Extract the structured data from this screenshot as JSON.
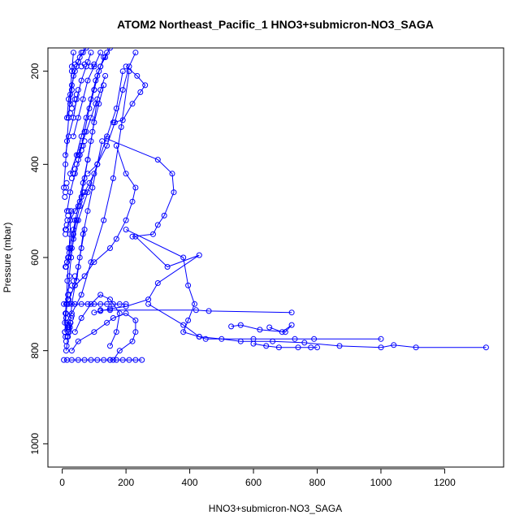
{
  "chart_data": {
    "type": "scatter",
    "title": "ATOM2 Northeast_Pacific_1 HNO3+submicron-NO3_SAGA",
    "xlabel": "HNO3+submicron-NO3_SAGA",
    "ylabel": "Pressure (mbar)",
    "xlim": [
      -45,
      1385
    ],
    "ylim": [
      1050,
      150
    ],
    "y_reversed": true,
    "x_ticks": [
      0,
      200,
      400,
      600,
      800,
      1000,
      1200
    ],
    "y_ticks": [
      200,
      400,
      600,
      800,
      1000
    ],
    "grid": false,
    "legend": "none",
    "color": "#0000ff",
    "series": [
      {
        "x": [
          140,
          300,
          345,
          350,
          320,
          300,
          285,
          220
        ],
        "y": [
          345,
          390,
          420,
          460,
          510,
          530,
          550,
          555
        ]
      },
      {
        "x": [
          230,
          330,
          430,
          300,
          270,
          200,
          150,
          120,
          100
        ],
        "y": [
          555,
          620,
          595,
          655,
          690,
          705,
          710,
          715,
          718
        ]
      },
      {
        "x": [
          200,
          380,
          395,
          415,
          395,
          380,
          430,
          450,
          600,
          730,
          790,
          1000
        ],
        "y": [
          540,
          600,
          660,
          700,
          735,
          760,
          770,
          775,
          775,
          775,
          775,
          775
        ]
      },
      {
        "x": [
          270,
          380,
          430,
          500,
          560,
          660,
          760,
          870,
          1000,
          1040,
          1110,
          1330
        ],
        "y": [
          700,
          745,
          770,
          775,
          780,
          780,
          783,
          790,
          793,
          788,
          793,
          793
        ]
      },
      {
        "x": [
          120,
          150,
          420,
          460,
          720
        ],
        "y": [
          713,
          713,
          713,
          715,
          718
        ]
      },
      {
        "x": [
          650,
          690,
          720,
          700,
          620,
          560,
          530
        ],
        "y": [
          750,
          760,
          745,
          760,
          755,
          745,
          748
        ]
      },
      {
        "x": [
          600,
          640,
          680,
          740,
          780,
          800
        ],
        "y": [
          785,
          790,
          793,
          793,
          793,
          793
        ]
      },
      {
        "x": [
          160,
          190,
          220,
          245,
          260,
          235,
          200
        ],
        "y": [
          310,
          305,
          270,
          245,
          230,
          210,
          190
        ]
      },
      {
        "x": [
          80,
          110,
          140,
          165,
          190,
          210,
          230
        ],
        "y": [
          420,
          400,
          360,
          310,
          240,
          190,
          160
        ]
      },
      {
        "x": [
          30,
          60,
          90,
          130,
          160,
          185,
          210
        ],
        "y": [
          720,
          680,
          610,
          520,
          430,
          320,
          200
        ]
      },
      {
        "x": [
          20,
          40,
          70,
          100,
          150,
          170,
          200,
          220,
          230,
          200,
          170
        ],
        "y": [
          690,
          660,
          640,
          610,
          580,
          560,
          520,
          480,
          450,
          420,
          360
        ]
      },
      {
        "x": [
          10,
          30,
          50,
          80,
          110,
          140,
          170,
          190
        ],
        "y": [
          620,
          580,
          520,
          460,
          400,
          340,
          280,
          200
        ]
      },
      {
        "x": [
          40,
          60,
          90,
          120,
          150,
          180,
          170,
          150
        ],
        "y": [
          760,
          730,
          700,
          680,
          690,
          720,
          760,
          790
        ]
      },
      {
        "x": [
          30,
          50,
          100,
          140,
          160,
          200,
          230,
          230,
          220,
          180,
          160,
          150
        ],
        "y": [
          800,
          780,
          760,
          740,
          730,
          720,
          735,
          760,
          780,
          800,
          820,
          820
        ]
      },
      {
        "x": [
          15,
          25,
          40,
          55,
          70,
          85,
          100,
          115,
          130
        ],
        "y": [
          500,
          460,
          420,
          380,
          330,
          280,
          240,
          200,
          170
        ]
      },
      {
        "x": [
          20,
          35,
          50,
          65,
          80,
          95,
          110
        ],
        "y": [
          580,
          540,
          490,
          440,
          390,
          330,
          260
        ]
      },
      {
        "x": [
          25,
          45,
          60,
          75,
          90,
          105,
          120,
          140
        ],
        "y": [
          420,
          380,
          340,
          300,
          260,
          220,
          190,
          160
        ]
      },
      {
        "x": [
          10,
          20,
          35,
          45,
          60,
          75,
          90
        ],
        "y": [
          380,
          340,
          300,
          260,
          220,
          190,
          160
        ]
      },
      {
        "x": [
          15,
          20,
          30,
          40,
          50,
          60
        ],
        "y": [
          300,
          260,
          230,
          200,
          180,
          160
        ]
      },
      {
        "x": [
          5,
          10,
          15,
          20,
          25,
          30,
          35
        ],
        "y": [
          450,
          400,
          350,
          300,
          250,
          200,
          160
        ]
      },
      {
        "x": [
          8,
          12,
          18,
          22,
          28,
          35,
          40
        ],
        "y": [
          760,
          720,
          680,
          640,
          600,
          560,
          520
        ]
      },
      {
        "x": [
          12,
          18,
          25,
          30,
          40,
          50,
          60,
          70
        ],
        "y": [
          800,
          770,
          740,
          700,
          660,
          620,
          580,
          540
        ]
      },
      {
        "x": [
          5,
          15,
          30,
          50,
          70,
          90,
          110,
          130,
          150,
          170,
          190,
          210,
          230,
          250
        ],
        "y": [
          820,
          820,
          820,
          820,
          820,
          820,
          820,
          820,
          820,
          820,
          820,
          820,
          820,
          820
        ]
      },
      {
        "x": [
          5,
          20,
          40,
          60,
          80,
          100,
          120,
          140,
          160,
          180,
          200
        ],
        "y": [
          700,
          700,
          700,
          700,
          700,
          700,
          700,
          700,
          700,
          700,
          700
        ]
      },
      {
        "x": [
          10,
          25,
          40,
          55,
          70,
          85,
          100
        ],
        "y": [
          540,
          520,
          500,
          480,
          460,
          440,
          420
        ]
      },
      {
        "x": [
          45,
          55,
          65,
          80,
          95,
          110,
          125
        ],
        "y": [
          650,
          600,
          550,
          500,
          450,
          400,
          350
        ]
      },
      {
        "x": [
          60,
          70,
          80,
          90,
          100,
          115,
          130
        ],
        "y": [
          470,
          430,
          390,
          350,
          310,
          270,
          230
        ]
      },
      {
        "x": [
          35,
          50,
          65,
          80,
          100,
          120
        ],
        "y": [
          340,
          300,
          260,
          220,
          190,
          160
        ]
      },
      {
        "x": [
          25,
          30,
          35,
          45,
          55,
          65,
          75
        ],
        "y": [
          270,
          240,
          210,
          190,
          170,
          160,
          150
        ]
      },
      {
        "x": [
          8,
          12,
          16,
          20,
          24,
          28
        ],
        "y": [
          740,
          700,
          650,
          600,
          550,
          500
        ]
      },
      {
        "x": [
          15,
          25,
          35,
          45,
          55,
          65
        ],
        "y": [
          610,
          580,
          550,
          520,
          490,
          460
        ]
      },
      {
        "x": [
          50,
          60,
          75,
          90,
          105,
          120,
          135
        ],
        "y": [
          380,
          360,
          330,
          300,
          270,
          240,
          210
        ]
      },
      {
        "x": [
          100,
          110,
          120,
          135,
          150
        ],
        "y": [
          240,
          210,
          190,
          170,
          150
        ]
      }
    ],
    "scatter_points": {
      "x": [
        10,
        12,
        14,
        16,
        18,
        20,
        22,
        24,
        26,
        28,
        30,
        8,
        10,
        12,
        14,
        16,
        18,
        20,
        22,
        15,
        18,
        20,
        25,
        30,
        35,
        40,
        12,
        15,
        18,
        22,
        25,
        10,
        12,
        14,
        16,
        18,
        20,
        8,
        10,
        12,
        14,
        30,
        35,
        40,
        45,
        50,
        55,
        60,
        65,
        70,
        20,
        25,
        30,
        35,
        40,
        45,
        50,
        30,
        40,
        50,
        60,
        70,
        80,
        90,
        100
      ],
      "y": [
        720,
        730,
        740,
        745,
        750,
        755,
        760,
        750,
        740,
        730,
        725,
        760,
        770,
        780,
        790,
        770,
        760,
        750,
        745,
        700,
        690,
        680,
        670,
        660,
        650,
        640,
        620,
        610,
        600,
        590,
        580,
        550,
        540,
        530,
        520,
        510,
        500,
        470,
        460,
        450,
        440,
        430,
        420,
        410,
        400,
        390,
        380,
        370,
        360,
        350,
        300,
        290,
        280,
        270,
        260,
        250,
        240,
        190,
        185,
        180,
        190,
        185,
        180,
        190,
        185
      ]
    }
  }
}
